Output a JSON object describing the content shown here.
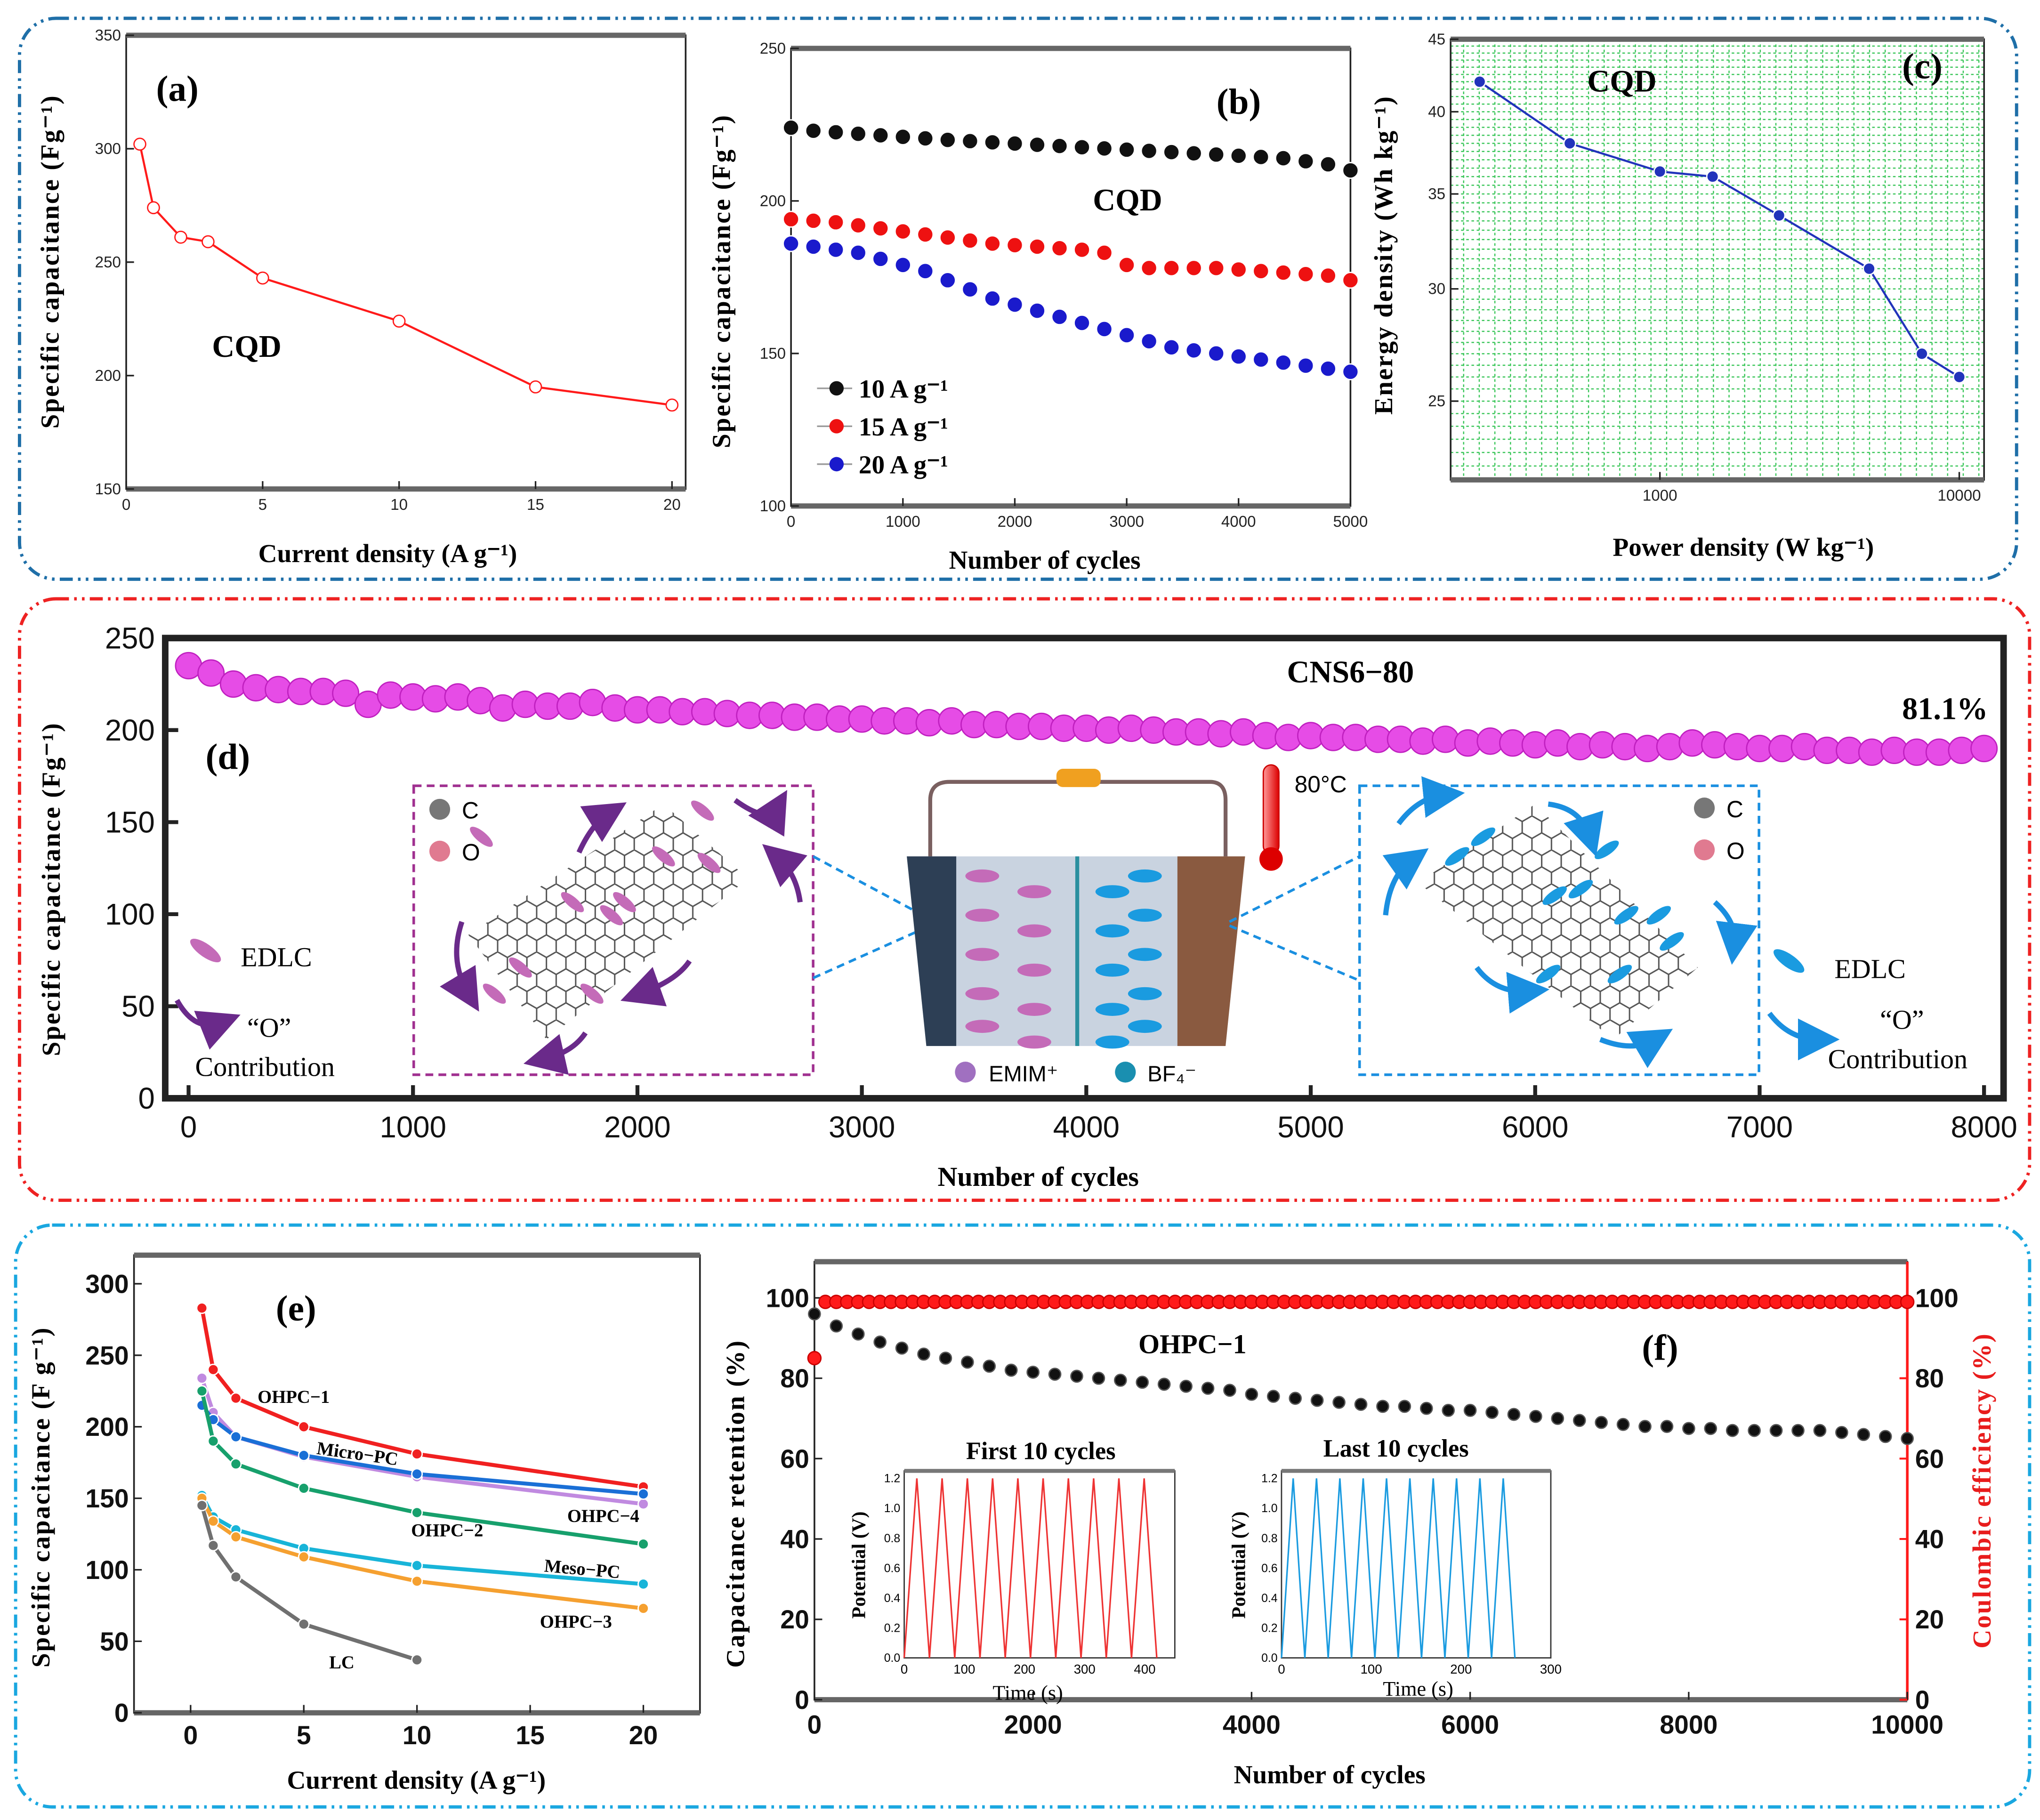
{
  "chart_data": [
    {
      "type": "line",
      "panel": "(a)",
      "annotation": "CQD",
      "xlabel": "Current density (A g⁻¹)",
      "ylabel": "Specific capacitance (Fg⁻¹)",
      "xlim": [
        0,
        20.5
      ],
      "ylim": [
        150,
        350
      ],
      "xticks": [
        0,
        5,
        10,
        15,
        20
      ],
      "yticks": [
        150,
        200,
        250,
        300,
        350
      ],
      "color": "#ff1a1a",
      "x": [
        0.5,
        1,
        2,
        3,
        5,
        10,
        15,
        20
      ],
      "y": [
        302,
        274,
        261,
        259,
        243,
        224,
        195,
        187
      ]
    },
    {
      "type": "scatter",
      "panel": "(b)",
      "annotation": "CQD",
      "xlabel": "Number of cycles",
      "ylabel": "Specific capacitance (Fg⁻¹)",
      "xlim": [
        0,
        5000
      ],
      "ylim": [
        100,
        250
      ],
      "xticks": [
        0,
        1000,
        2000,
        3000,
        4000,
        5000
      ],
      "yticks": [
        100,
        150,
        200,
        250
      ],
      "legend_position": "bottom-left",
      "x_start": 0,
      "x_step": 200,
      "series": [
        {
          "name": "10 A g⁻¹",
          "color": "#111111",
          "values": [
            224,
            223,
            222.5,
            222,
            221.5,
            221,
            220.5,
            220,
            219.6,
            219.2,
            218.8,
            218.4,
            218,
            217.6,
            217.2,
            216.8,
            216.4,
            216,
            215.6,
            215.2,
            214.8,
            214.4,
            214,
            213,
            212,
            210
          ]
        },
        {
          "name": "15 A g⁻¹",
          "color": "#ee1111",
          "values": [
            194,
            193.5,
            193,
            192,
            191,
            190,
            189,
            188,
            187,
            186,
            185.5,
            185,
            184.5,
            184,
            183,
            179,
            178,
            178,
            178,
            178,
            177.5,
            177,
            176.5,
            176,
            175.5,
            174
          ]
        },
        {
          "name": "20 A g⁻¹",
          "color": "#1a1acc",
          "values": [
            186,
            185,
            184,
            183,
            181,
            179,
            177,
            174,
            171,
            168,
            166,
            164,
            162,
            160,
            158,
            156,
            154,
            152,
            151,
            150,
            149,
            148,
            147,
            146,
            145,
            144
          ]
        }
      ]
    },
    {
      "type": "line",
      "panel": "(c)",
      "annotation": "CQD",
      "xlabel": "Power density (W kg⁻¹)",
      "ylabel": "Energy density (Wh kg⁻¹)",
      "xscale": "log",
      "yscale": "log",
      "xlim": [
        200,
        12100
      ],
      "ylim": [
        22,
        45
      ],
      "xticks": [
        1000,
        10000
      ],
      "yticks": [
        25,
        30,
        35,
        40,
        45
      ],
      "grid": true,
      "color": "#2233bb",
      "x": [
        250,
        500,
        1000,
        1500,
        2500,
        5000,
        7500,
        10000
      ],
      "y": [
        42,
        38,
        36.3,
        36,
        33.8,
        31,
        27,
        26
      ]
    },
    {
      "type": "scatter",
      "panel": "(d)",
      "title": "CNS6−80",
      "annotation": "81.1%",
      "xlabel": "Number of cycles",
      "ylabel": "Specific capacitance (Fg⁻¹)",
      "xlim": [
        -104,
        8087
      ],
      "ylim": [
        0,
        250
      ],
      "xticks": [
        0,
        1000,
        2000,
        3000,
        4000,
        5000,
        6000,
        7000,
        8000
      ],
      "yticks": [
        0,
        50,
        100,
        150,
        200,
        250
      ],
      "color": "#e020e0",
      "x_start": 0,
      "x_step": 100,
      "values": [
        235,
        231,
        225,
        223,
        222,
        221,
        221,
        220,
        214,
        219,
        218,
        217,
        218,
        216,
        212,
        214,
        213,
        213,
        215,
        212,
        211,
        211,
        210,
        210,
        209,
        208,
        208,
        207,
        207,
        206,
        206,
        205,
        205,
        204,
        205,
        203,
        203,
        202,
        202,
        201,
        201,
        200,
        201,
        200,
        199,
        199,
        198,
        199,
        197,
        196,
        197,
        196,
        196,
        195,
        195,
        194,
        195,
        193,
        194,
        193,
        192,
        193,
        191,
        192,
        191,
        190,
        191,
        193,
        192,
        191,
        190,
        190,
        191,
        189,
        189,
        188,
        189,
        188,
        188,
        189,
        190
      ]
    },
    {
      "type": "line",
      "panel": "(e)",
      "xlabel": "Current density (A g⁻¹)",
      "ylabel": "Specific capacitance (F g⁻¹)",
      "xlim": [
        -2.5,
        22.5
      ],
      "ylim": [
        0,
        320
      ],
      "xticks": [
        0,
        5,
        10,
        15,
        20
      ],
      "yticks": [
        0,
        50,
        100,
        150,
        200,
        250,
        300
      ],
      "series": [
        {
          "name": "OHPC−1",
          "color": "#f02020",
          "x": [
            0.5,
            1,
            2,
            5,
            10,
            20
          ],
          "y": [
            283,
            240,
            220,
            200,
            181,
            158
          ]
        },
        {
          "name": "Micro−PC",
          "color": "#c08ae0",
          "x": [
            0.5,
            1,
            2,
            5,
            10,
            20
          ],
          "y": [
            234,
            210,
            193,
            179,
            165,
            146
          ]
        },
        {
          "name": "OHPC−4",
          "color": "#1a6fd6",
          "x": [
            0.5,
            1,
            2,
            5,
            10,
            20
          ],
          "y": [
            215,
            205,
            193,
            180,
            167,
            153
          ]
        },
        {
          "name": "OHPC−2",
          "color": "#17a06c",
          "x": [
            0.5,
            1,
            2,
            5,
            10,
            20
          ],
          "y": [
            225,
            190,
            174,
            157,
            140,
            118
          ]
        },
        {
          "name": "Meso−PC",
          "color": "#18b4d8",
          "x": [
            0.5,
            1,
            2,
            5,
            10,
            20
          ],
          "y": [
            152,
            137,
            128,
            115,
            103,
            90
          ]
        },
        {
          "name": "OHPC−3",
          "color": "#f5a030",
          "x": [
            0.5,
            1,
            2,
            5,
            10,
            20
          ],
          "y": [
            150,
            134,
            123,
            109,
            92,
            73
          ]
        },
        {
          "name": "LC",
          "color": "#707070",
          "x": [
            0.5,
            1,
            2,
            5,
            10
          ],
          "y": [
            145,
            117,
            95,
            62,
            37
          ]
        }
      ]
    },
    {
      "type": "scatter",
      "panel": "(f)",
      "annotation": "OHPC−1",
      "xlabel": "Number of cycles",
      "ylabel": "Capacitance retention (%)",
      "y2label": "Coulombic efficiency (%)",
      "xlim": [
        0,
        10000
      ],
      "ylim": [
        0,
        109
      ],
      "xticks": [
        0,
        2000,
        4000,
        6000,
        8000,
        10000
      ],
      "yticks": [
        0,
        20,
        40,
        60,
        80,
        100
      ],
      "retention": {
        "color": "#111111",
        "x_start": 0,
        "x_step": 200,
        "values": [
          96,
          93,
          91,
          89,
          87.5,
          86,
          85,
          84,
          83,
          82,
          81.5,
          81,
          80.5,
          80,
          79.5,
          79,
          78.5,
          78,
          77.5,
          77,
          76,
          75.5,
          75,
          74.5,
          74,
          73.5,
          73,
          73,
          72.5,
          72,
          72,
          71.5,
          71,
          70.5,
          70,
          69.5,
          69,
          68.5,
          68,
          68,
          67.5,
          67.5,
          67,
          67,
          67,
          67,
          67,
          66.5,
          66,
          65.5,
          65
        ]
      },
      "coulombic_efficiency": {
        "color": "#ff1a1a",
        "initial": 85,
        "steady": 99,
        "x_step": 100
      },
      "insets": [
        {
          "title": "First 10 cycles",
          "xlabel": "Time (s)",
          "ylabel": "Potential (V)",
          "color": "#ee3333",
          "cycles": 10,
          "period_s": 42,
          "vmax": 1.2,
          "xlim": [
            0,
            450
          ],
          "ylim": [
            0,
            1.25
          ],
          "xticks": [
            0,
            100,
            200,
            300,
            400
          ],
          "yticks": [
            0.0,
            0.2,
            0.4,
            0.6,
            0.8,
            1.0,
            1.2
          ]
        },
        {
          "title": "Last 10 cycles",
          "xlabel": "Time (s)",
          "ylabel": "Potential (V)",
          "color": "#1a9be0",
          "cycles": 10,
          "period_s": 26,
          "vmax": 1.2,
          "xlim": [
            0,
            300
          ],
          "ylim": [
            0,
            1.25
          ],
          "xticks": [
            0,
            100,
            200,
            300
          ],
          "yticks": [
            0.0,
            0.2,
            0.4,
            0.6,
            0.8,
            1.0,
            1.2
          ]
        }
      ]
    }
  ],
  "schematic": {
    "temperature": "80°C",
    "atom_c": "C",
    "atom_o": "O",
    "edlc": "EDLC",
    "o_contribution_1": "“O”",
    "o_contribution_2": "Contribution",
    "cation": "EMIM⁺",
    "anion": "BF₄⁻"
  },
  "colors": {
    "top_frame": "#1f6fa8",
    "middle_frame": "#ee2222",
    "bottom_frame": "#1aa7e0"
  }
}
